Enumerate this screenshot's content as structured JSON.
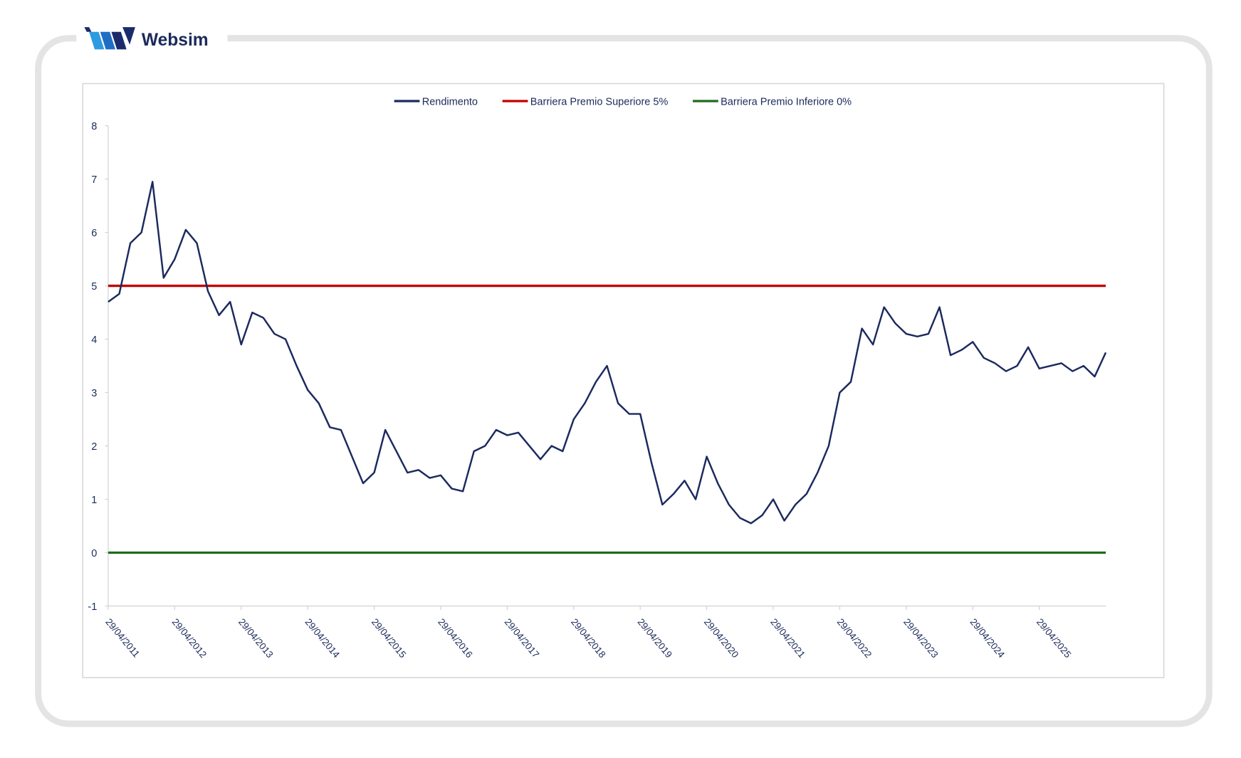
{
  "brand": "Websim",
  "chart_data": {
    "type": "line",
    "categories": [
      "29/04/2011",
      null,
      null,
      null,
      null,
      null,
      "29/04/2012",
      null,
      null,
      null,
      null,
      null,
      "29/04/2013",
      null,
      null,
      null,
      null,
      null,
      "29/04/2014",
      null,
      null,
      null,
      null,
      null,
      "29/04/2015",
      null,
      null,
      null,
      null,
      null,
      "29/04/2016",
      null,
      null,
      null,
      null,
      null,
      "29/04/2017",
      null,
      null,
      null,
      null,
      null,
      "29/04/2018",
      null,
      null,
      null,
      null,
      null,
      "29/04/2019",
      null,
      null,
      null,
      null,
      null,
      "29/04/2020",
      null,
      null,
      null,
      null,
      null,
      "29/04/2021",
      null,
      null,
      null,
      null,
      null,
      "29/04/2022",
      null,
      null,
      null,
      null,
      null,
      "29/04/2023",
      null,
      null,
      null,
      null,
      null,
      "29/04/2024",
      null,
      null,
      null,
      null,
      null,
      "29/04/2025",
      null,
      null,
      null,
      null,
      null,
      null
    ],
    "series": [
      {
        "name": "Rendimento",
        "color": "#1b2a5e",
        "values": [
          4.7,
          4.85,
          5.8,
          6.0,
          6.95,
          5.15,
          5.5,
          6.05,
          5.8,
          4.9,
          4.45,
          4.7,
          3.9,
          4.5,
          4.4,
          4.1,
          4.0,
          3.5,
          3.05,
          2.8,
          2.35,
          2.3,
          1.8,
          1.3,
          1.5,
          2.3,
          1.9,
          1.5,
          1.55,
          1.4,
          1.45,
          1.2,
          1.15,
          1.9,
          2.0,
          2.3,
          2.2,
          2.25,
          2.0,
          1.75,
          2.0,
          1.9,
          2.5,
          2.8,
          3.2,
          3.5,
          2.8,
          2.6,
          2.6,
          1.7,
          0.9,
          1.1,
          1.35,
          1.0,
          1.8,
          1.3,
          0.9,
          0.65,
          0.55,
          0.7,
          1.0,
          0.6,
          0.9,
          1.1,
          1.5,
          2.0,
          3.0,
          3.2,
          4.2,
          3.9,
          4.6,
          4.3,
          4.1,
          4.05,
          4.1,
          4.6,
          3.7,
          3.8,
          3.95,
          3.65,
          3.55,
          3.4,
          3.5,
          3.85,
          3.45,
          3.5,
          3.55,
          3.4,
          3.5,
          3.3,
          3.75
        ]
      }
    ],
    "reference_lines": [
      {
        "name": "Barriera Premio Superiore 5%",
        "color": "#c00000",
        "value": 5
      },
      {
        "name": "Barriera Premio Inferiore 0%",
        "color": "#1e6b1e",
        "value": 0
      }
    ],
    "ylim": [
      -1,
      8
    ],
    "yticks": [
      -1,
      0,
      1,
      2,
      3,
      4,
      5,
      6,
      7,
      8
    ],
    "legend": "top"
  }
}
